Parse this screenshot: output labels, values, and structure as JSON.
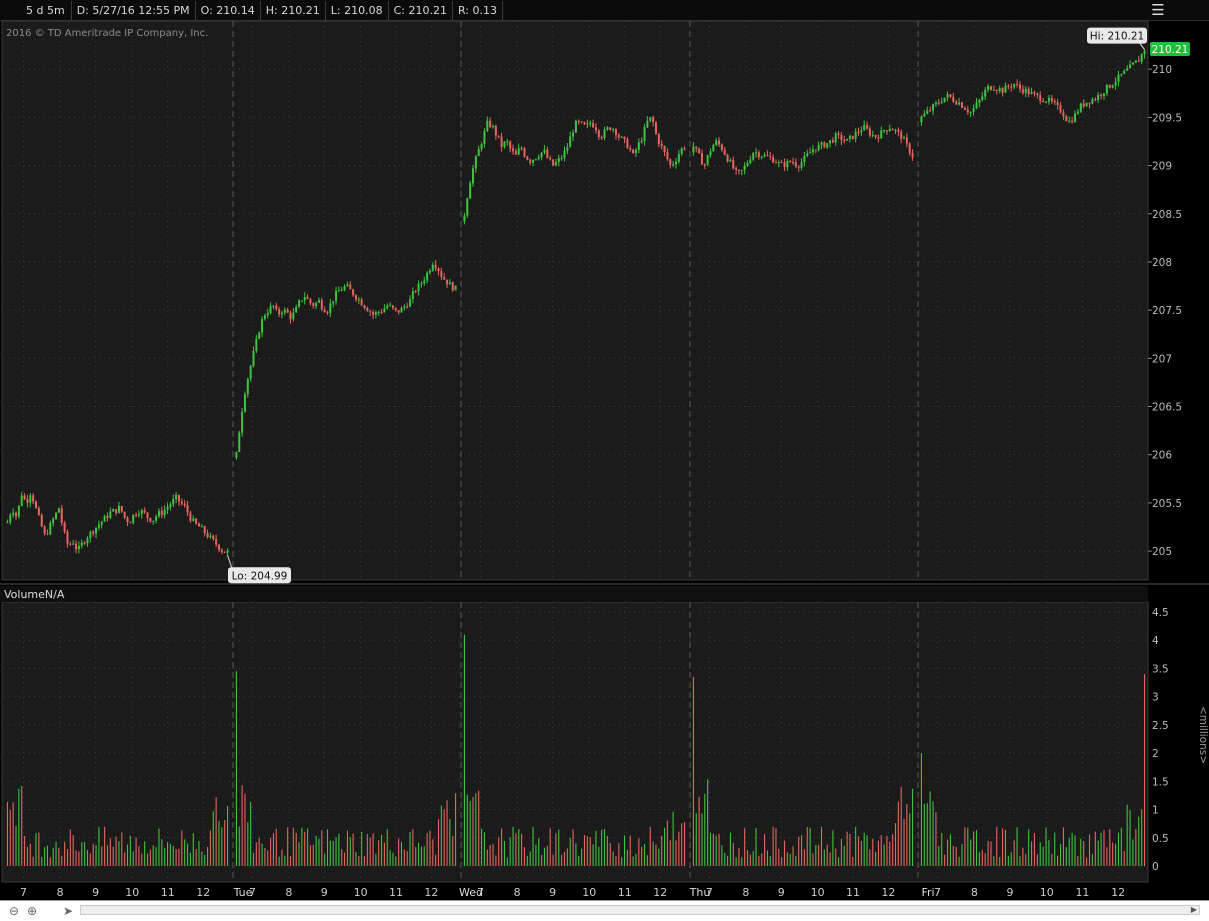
{
  "header": {
    "period": "5 d 5m",
    "date": "D: 5/27/16 12:55 PM",
    "open": "O: 210.14",
    "high": "H: 210.21",
    "low": "L: 210.08",
    "close": "C: 210.21",
    "range": "R: 0.13"
  },
  "copyright": "2016 © TD Ameritrade IP Company, Inc.",
  "volume_label": "VolumeN/A",
  "volume_unit": "<millions>",
  "last_price": "210.21",
  "hi_label": "Hi: 210.21",
  "lo_label": "Lo: 204.99",
  "colors": {
    "up": "#3ec43e",
    "down": "#e8655f",
    "grid": "#3a3a3a",
    "bg": "#000000",
    "last_price_bg": "#1fbf3a"
  },
  "chart_data": [
    {
      "type": "line",
      "title": "",
      "interval": "5m",
      "ylim": [
        204.7,
        210.5
      ],
      "y_ticks": [
        205,
        205.5,
        206,
        206.5,
        207,
        207.5,
        208,
        208.5,
        209,
        209.5,
        210
      ],
      "y_tick_labels": [
        "205",
        "205.5",
        "206",
        "206.5",
        "207",
        "207.5",
        "208",
        "208.5",
        "209",
        "209.5",
        "210"
      ],
      "days": [
        "",
        "Tue",
        "Wed",
        "Thu",
        "Fri"
      ],
      "hour_ticks": [
        "7",
        "8",
        "9",
        "10",
        "11",
        "12"
      ],
      "x_tick_labels": [
        "7",
        "8",
        "9",
        "10",
        "11",
        "12",
        "Tue",
        "7",
        "8",
        "9",
        "10",
        "11",
        "12",
        "Wed",
        "7",
        "8",
        "9",
        "10",
        "11",
        "12",
        "Thu",
        "7",
        "8",
        "9",
        "10",
        "11",
        "12",
        "Fri",
        "7",
        "8",
        "9",
        "10",
        "11",
        "12"
      ],
      "bars_per_day": 78,
      "series": [
        {
          "close": [
            [
              205.3,
              205.45,
              205.35,
              205.6,
              205.5,
              205.62,
              205.45,
              205.3,
              205.15,
              205.25,
              205.35,
              205.45,
              205.2,
              205.05,
              205.1,
              205.0,
              205.08,
              205.15,
              205.2,
              205.25,
              205.3,
              205.35,
              205.4,
              205.42,
              205.45,
              205.35,
              205.3,
              205.38,
              205.42,
              205.4,
              205.35,
              205.32,
              205.38,
              205.4,
              205.45,
              205.5,
              205.55,
              205.5,
              205.45,
              205.35,
              205.28,
              205.25,
              205.2,
              205.15,
              205.1,
              205.05,
              205.0,
              204.99
            ],
            [
              206.0,
              206.4,
              206.7,
              206.9,
              207.1,
              207.3,
              207.45,
              207.5,
              207.55,
              207.45,
              207.5,
              207.48,
              207.42,
              207.5,
              207.6,
              207.65,
              207.58,
              207.55,
              207.6,
              207.52,
              207.5,
              207.6,
              207.68,
              207.72,
              207.75,
              207.7,
              207.65,
              207.6,
              207.55,
              207.5,
              207.45,
              207.48,
              207.5,
              207.55,
              207.52,
              207.48,
              207.5,
              207.55,
              207.6,
              207.7,
              207.75,
              207.82,
              207.9,
              208.0,
              207.95,
              207.85,
              207.8,
              207.75,
              207.72
            ],
            [
              208.5,
              208.8,
              209.0,
              209.15,
              209.3,
              209.45,
              209.4,
              209.3,
              209.2,
              209.25,
              209.15,
              209.1,
              209.2,
              209.1,
              209.05,
              209.08,
              209.12,
              209.15,
              209.05,
              209.0,
              209.05,
              209.1,
              209.2,
              209.35,
              209.45,
              209.42,
              209.4,
              209.45,
              209.4,
              209.3,
              209.35,
              209.4,
              209.38,
              209.3,
              209.25,
              209.2,
              209.1,
              209.2,
              209.3,
              209.45,
              209.5,
              209.3,
              209.2,
              209.1,
              209.0,
              209.05,
              209.15,
              209.2
            ],
            [
              209.2,
              209.1,
              209.0,
              209.15,
              209.25,
              209.2,
              209.1,
              209.0,
              208.9,
              208.95,
              209.05,
              209.15,
              209.12,
              209.1,
              209.08,
              209.05,
              209.0,
              209.02,
              209.05,
              209.0,
              209.05,
              209.12,
              209.18,
              209.2,
              209.22,
              209.25,
              209.3,
              209.28,
              209.25,
              209.3,
              209.35,
              209.4,
              209.35,
              209.3,
              209.32,
              209.38,
              209.4,
              209.35,
              209.3,
              209.2,
              209.1
            ],
            [
              209.5,
              209.55,
              209.6,
              209.65,
              209.7,
              209.72,
              209.68,
              209.65,
              209.6,
              209.55,
              209.62,
              209.7,
              209.8,
              209.82,
              209.8,
              209.78,
              209.82,
              209.85,
              209.8,
              209.78,
              209.75,
              209.72,
              209.7,
              209.68,
              209.65,
              209.6,
              209.55,
              209.45,
              209.5,
              209.6,
              209.65,
              209.68,
              209.7,
              209.75,
              209.8,
              209.85,
              209.9,
              209.95,
              210.0,
              210.05,
              210.1,
              210.21
            ]
          ]
        }
      ]
    },
    {
      "type": "bar",
      "title": "",
      "ylabel": "<millions>",
      "ylim": [
        0,
        4.5
      ],
      "y_ticks": [
        0,
        0.5,
        1,
        1.5,
        2,
        2.5,
        3,
        3.5,
        4,
        4.5
      ],
      "y_tick_labels": [
        "0",
        "0.5",
        "1",
        "1.5",
        "2",
        "2.5",
        "3",
        "3.5",
        "4",
        "4.5"
      ],
      "peaks": [
        {
          "day": 1,
          "open_spike": 3.45
        },
        {
          "day": 2,
          "open_spike": 4.1
        },
        {
          "day": 3,
          "open_spike": 3.35
        },
        {
          "day": 4,
          "open_spike": 2.0
        },
        {
          "day": 4,
          "close_spike": 3.4
        }
      ]
    }
  ]
}
